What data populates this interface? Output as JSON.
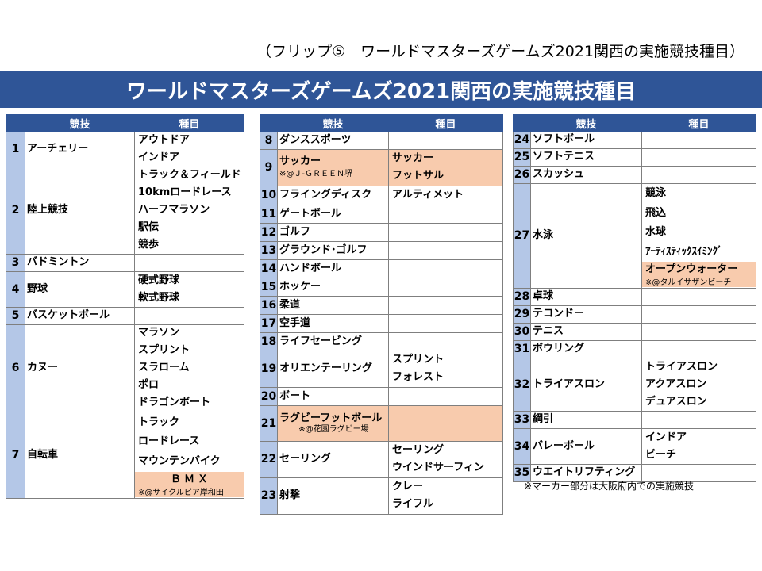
{
  "top_caption": "（フリップ⑤　ワールドマスターズゲームズ2021関西の実施競技種目）",
  "title": "ワールドマスターズゲームズ2021関西の実施競技種目",
  "headers": {
    "sport": "競技",
    "event": "種目"
  },
  "colors": {
    "header_bg": "#2f5597",
    "num_bg": "#b4c7e7",
    "highlight": "#f8cbad"
  },
  "table1": [
    {
      "num": "1",
      "sport": "アーチェリー",
      "events": [
        "アウトドア",
        "インドア"
      ]
    },
    {
      "num": "2",
      "sport": "陸上競技",
      "events": [
        "トラック＆フィールド",
        "10kmロードレース",
        "ハーフマラソン",
        "駅伝",
        "競歩"
      ]
    },
    {
      "num": "3",
      "sport": "バドミントン",
      "events": []
    },
    {
      "num": "4",
      "sport": "野球",
      "events": [
        "硬式野球",
        "軟式野球"
      ]
    },
    {
      "num": "5",
      "sport": "バスケットボール",
      "events": []
    },
    {
      "num": "6",
      "sport": "カヌー",
      "events": [
        "マラソン",
        "スプリント",
        "スラローム",
        "ポロ",
        "ドラゴンボート"
      ]
    },
    {
      "num": "7",
      "sport": "自転車",
      "events": [
        "トラック",
        "ロードレース",
        "マウンテンバイク"
      ],
      "hl_event": "ＢＭＸ",
      "hl_note": "※@サイクルピア岸和田"
    }
  ],
  "table2": [
    {
      "num": "8",
      "sport": "ダンススポーツ",
      "events": []
    },
    {
      "num": "9",
      "sport": "サッカー",
      "note": "※@Ｊ-ＧＲＥＥＮ堺",
      "events": [
        "サッカー",
        "フットサル"
      ],
      "highlight": true
    },
    {
      "num": "10",
      "sport": "フライングディスク",
      "events": [
        "アルティメット"
      ]
    },
    {
      "num": "11",
      "sport": "ゲートボール",
      "events": []
    },
    {
      "num": "12",
      "sport": "ゴルフ",
      "events": []
    },
    {
      "num": "13",
      "sport": "グラウンド･ゴルフ",
      "events": []
    },
    {
      "num": "14",
      "sport": "ハンドボール",
      "events": []
    },
    {
      "num": "15",
      "sport": "ホッケー",
      "events": []
    },
    {
      "num": "16",
      "sport": "柔道",
      "events": []
    },
    {
      "num": "17",
      "sport": "空手道",
      "events": []
    },
    {
      "num": "18",
      "sport": "ライフセービング",
      "events": []
    },
    {
      "num": "19",
      "sport": "オリエンテーリング",
      "events": [
        "スプリント",
        "フォレスト"
      ]
    },
    {
      "num": "20",
      "sport": "ボート",
      "events": []
    },
    {
      "num": "21",
      "sport": "ラグビーフットボール",
      "note": "※@花園ラグビー場",
      "events": [],
      "highlight": true
    },
    {
      "num": "22",
      "sport": "セーリング",
      "events": [
        "セーリング",
        "ウインドサーフィン"
      ]
    },
    {
      "num": "23",
      "sport": "射撃",
      "events": [
        "クレー",
        "ライフル"
      ]
    }
  ],
  "table3": [
    {
      "num": "24",
      "sport": "ソフトボール",
      "events": []
    },
    {
      "num": "25",
      "sport": "ソフトテニス",
      "events": []
    },
    {
      "num": "26",
      "sport": "スカッシュ",
      "events": []
    },
    {
      "num": "27",
      "sport": "水泳",
      "events": [
        "競泳",
        "飛込",
        "水球",
        "ｱｰﾃｨｽﾃｨｯｸｽｲﾐﾝｸﾞ"
      ],
      "hl_event": "オープンウォーター",
      "hl_note": "※@タルイサザンビーチ"
    },
    {
      "num": "28",
      "sport": "卓球",
      "events": []
    },
    {
      "num": "29",
      "sport": "テコンドー",
      "events": []
    },
    {
      "num": "30",
      "sport": "テニス",
      "events": []
    },
    {
      "num": "31",
      "sport": "ボウリング",
      "events": []
    },
    {
      "num": "32",
      "sport": "トライアスロン",
      "events": [
        "トライアスロン",
        "アクアスロン",
        "デュアスロン"
      ]
    },
    {
      "num": "33",
      "sport": "綱引",
      "events": []
    },
    {
      "num": "34",
      "sport": "バレーボール",
      "events": [
        "インドア",
        "ビーチ"
      ]
    },
    {
      "num": "35",
      "sport": "ウエイトリフティング",
      "events": []
    }
  ],
  "footnote": "※マーカー部分は大阪府内での実施競技"
}
